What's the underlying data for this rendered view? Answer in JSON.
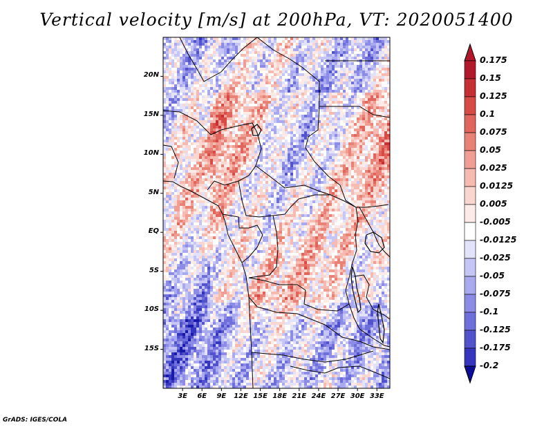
{
  "title": "Vertical velocity [m/s] at 200hPa, VT: 2020051400",
  "credit": "GrADS: IGES/COLA",
  "map": {
    "region": "Central Africa",
    "lon_range": [
      0,
      35
    ],
    "lat_range": [
      -20,
      25
    ],
    "lat_ticks": [
      {
        "value": 20,
        "label": "20N"
      },
      {
        "value": 15,
        "label": "15N"
      },
      {
        "value": 10,
        "label": "10N"
      },
      {
        "value": 5,
        "label": "5N"
      },
      {
        "value": 0,
        "label": "EQ"
      },
      {
        "value": -5,
        "label": "5S"
      },
      {
        "value": -10,
        "label": "10S"
      },
      {
        "value": -15,
        "label": "15S"
      }
    ],
    "lon_ticks": [
      {
        "value": 3,
        "label": "3E"
      },
      {
        "value": 6,
        "label": "6E"
      },
      {
        "value": 9,
        "label": "9E"
      },
      {
        "value": 12,
        "label": "12E"
      },
      {
        "value": 15,
        "label": "15E"
      },
      {
        "value": 18,
        "label": "18E"
      },
      {
        "value": 21,
        "label": "21E"
      },
      {
        "value": 24,
        "label": "24E"
      },
      {
        "value": 27,
        "label": "27E"
      },
      {
        "value": 30,
        "label": "30E"
      },
      {
        "value": 33,
        "label": "33E"
      }
    ]
  },
  "colorbar": {
    "levels": [
      {
        "label": "0.175",
        "color": "#b2182b"
      },
      {
        "label": "0.15",
        "color": "#c62f33"
      },
      {
        "label": "0.125",
        "color": "#d64b45"
      },
      {
        "label": "0.1",
        "color": "#e0655c"
      },
      {
        "label": "0.075",
        "color": "#e98276"
      },
      {
        "label": "0.05",
        "color": "#f09d93"
      },
      {
        "label": "0.025",
        "color": "#f6bab1"
      },
      {
        "label": "0.0125",
        "color": "#fad6d0"
      },
      {
        "label": "0.005",
        "color": "#fdebe7"
      },
      {
        "label": "-0.005",
        "color": "#ffffff"
      },
      {
        "label": "-0.0125",
        "color": "#e2e2fb"
      },
      {
        "label": "-0.025",
        "color": "#c6c6f6"
      },
      {
        "label": "-0.05",
        "color": "#a9a9ef"
      },
      {
        "label": "-0.075",
        "color": "#8c8ce6"
      },
      {
        "label": "-0.1",
        "color": "#6f6fdb"
      },
      {
        "label": "-0.125",
        "color": "#5252cd"
      },
      {
        "label": "-0.175",
        "color": "#3535bd"
      },
      {
        "label": "-0.2",
        "color": "#1a1aa8"
      }
    ],
    "bottom_color": "#0c0c96"
  },
  "field_seed": 20200514
}
